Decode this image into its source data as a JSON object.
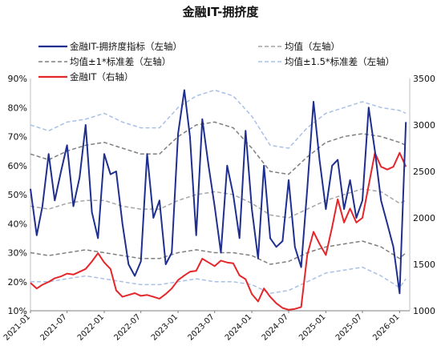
{
  "chart_data": {
    "type": "line",
    "title": "金融IT-拥挤度",
    "x_tick_labels": [
      "2021-01",
      "2021-07",
      "2022-01",
      "2022-07",
      "2023-01",
      "2023-07",
      "2024-01",
      "2024-07",
      "2025-01",
      "2025-07",
      "2026-01"
    ],
    "x_range": [
      "2021-01-01",
      "2026-02-20"
    ],
    "y_left": {
      "range": [
        10,
        90
      ],
      "ticks": [
        "10%",
        "20%",
        "30%",
        "40%",
        "50%",
        "60%",
        "70%",
        "80%",
        "90%"
      ],
      "unit": "%"
    },
    "y_right": {
      "range": [
        1000,
        3500
      ],
      "ticks": [
        "1000",
        "1500",
        "2000",
        "2500",
        "3000",
        "3500"
      ]
    },
    "legend": {
      "position": "top",
      "entries": [
        {
          "label": "金融IT-拥挤度指标（左轴）",
          "color": "#1f2f8f",
          "style": "solid"
        },
        {
          "label": "均值（左轴）",
          "color": "#a6a6a6",
          "style": "dashed"
        },
        {
          "label": "均值±1*标准差（左轴）",
          "color": "#7f7f7f",
          "style": "dashed"
        },
        {
          "label": "均值±1.5*标准差（左轴）",
          "color": "#a9c0e6",
          "style": "dashed"
        },
        {
          "label": "金融IT（右轴）",
          "color": "#e5262a",
          "style": "solid"
        }
      ]
    },
    "series": [
      {
        "name": "金融IT-拥挤度指标（左轴）",
        "axis": "left",
        "color": "#1f2f8f",
        "x": [
          "2021-01",
          "2021-02",
          "2021-03",
          "2021-04",
          "2021-05",
          "2021-06",
          "2021-07",
          "2021-08",
          "2021-09",
          "2021-10",
          "2021-11",
          "2021-12",
          "2022-01",
          "2022-02",
          "2022-03",
          "2022-04",
          "2022-05",
          "2022-06",
          "2022-07",
          "2022-08",
          "2022-09",
          "2022-10",
          "2022-11",
          "2022-12",
          "2023-01",
          "2023-02",
          "2023-03",
          "2023-04",
          "2023-05",
          "2023-06",
          "2023-07",
          "2023-08",
          "2023-09",
          "2023-10",
          "2023-11",
          "2023-12",
          "2024-01",
          "2024-02",
          "2024-03",
          "2024-04",
          "2024-05",
          "2024-06",
          "2024-07",
          "2024-08",
          "2024-09",
          "2024-10",
          "2024-11",
          "2024-12",
          "2025-01",
          "2025-02",
          "2025-03",
          "2025-04",
          "2025-05",
          "2025-06",
          "2025-07",
          "2025-08",
          "2025-09",
          "2025-10",
          "2025-11",
          "2025-12",
          "2026-01",
          "2026-02"
        ],
        "y": [
          52,
          36,
          46,
          64,
          48,
          58,
          67,
          46,
          56,
          74,
          44,
          35,
          64,
          57,
          58,
          40,
          26,
          22,
          27,
          64,
          42,
          48,
          26,
          30,
          71,
          86,
          70,
          36,
          76,
          60,
          46,
          30,
          60,
          50,
          35,
          72,
          45,
          28,
          60,
          35,
          32,
          34,
          55,
          32,
          25,
          52,
          82,
          62,
          45,
          60,
          62,
          45,
          55,
          42,
          48,
          80,
          65,
          48,
          40,
          32,
          16,
          75
        ]
      },
      {
        "name": "金融IT（右轴）",
        "axis": "right",
        "color": "#e5262a",
        "x": [
          "2021-01",
          "2021-02",
          "2021-03",
          "2021-04",
          "2021-05",
          "2021-06",
          "2021-07",
          "2021-08",
          "2021-09",
          "2021-10",
          "2021-11",
          "2021-12",
          "2022-01",
          "2022-02",
          "2022-03",
          "2022-04",
          "2022-05",
          "2022-06",
          "2022-07",
          "2022-08",
          "2022-09",
          "2022-10",
          "2022-11",
          "2022-12",
          "2023-01",
          "2023-02",
          "2023-03",
          "2023-04",
          "2023-05",
          "2023-06",
          "2023-07",
          "2023-08",
          "2023-09",
          "2023-10",
          "2023-11",
          "2023-12",
          "2024-01",
          "2024-02",
          "2024-03",
          "2024-04",
          "2024-05",
          "2024-06",
          "2024-07",
          "2024-08",
          "2024-09",
          "2024-10",
          "2024-11",
          "2024-12",
          "2025-01",
          "2025-02",
          "2025-03",
          "2025-04",
          "2025-05",
          "2025-06",
          "2025-07",
          "2025-08",
          "2025-09",
          "2025-10",
          "2025-11",
          "2025-12",
          "2026-01",
          "2026-02"
        ],
        "y": [
          1300,
          1240,
          1280,
          1310,
          1350,
          1370,
          1400,
          1390,
          1420,
          1450,
          1530,
          1620,
          1520,
          1450,
          1220,
          1150,
          1170,
          1190,
          1160,
          1170,
          1150,
          1130,
          1180,
          1240,
          1330,
          1380,
          1420,
          1430,
          1560,
          1520,
          1480,
          1540,
          1520,
          1510,
          1380,
          1340,
          1180,
          1100,
          1240,
          1150,
          1080,
          1030,
          1010,
          1020,
          1040,
          1600,
          1850,
          1720,
          1600,
          1900,
          2200,
          1950,
          2100,
          1950,
          2000,
          2350,
          2700,
          2550,
          2520,
          2550,
          2700,
          2550
        ]
      },
      {
        "name": "均值（左轴）",
        "axis": "left",
        "color": "#a6a6a6",
        "style": "dashed",
        "x": [
          "2021-01",
          "2021-04",
          "2021-07",
          "2021-10",
          "2022-01",
          "2022-04",
          "2022-07",
          "2022-10",
          "2023-01",
          "2023-04",
          "2023-07",
          "2023-10",
          "2024-01",
          "2024-04",
          "2024-07",
          "2024-10",
          "2025-01",
          "2025-04",
          "2025-07",
          "2025-10",
          "2026-01",
          "2026-02"
        ],
        "y": [
          46,
          45,
          47,
          48,
          48,
          46,
          45,
          45,
          48,
          50,
          51,
          50,
          47,
          43,
          42,
          45,
          48,
          50,
          52,
          51,
          47,
          48
        ]
      },
      {
        "name": "均值±1*标准差（左轴）",
        "axis": "left",
        "color": "#7f7f7f",
        "style": "dashed",
        "x": [
          "2021-01",
          "2021-04",
          "2021-07",
          "2021-10",
          "2022-01",
          "2022-04",
          "2022-07",
          "2022-10",
          "2023-01",
          "2023-04",
          "2023-07",
          "2023-10",
          "2024-01",
          "2024-04",
          "2024-07",
          "2024-10",
          "2025-01",
          "2025-04",
          "2025-07",
          "2025-10",
          "2026-01",
          "2026-02"
        ],
        "y": [
          64,
          62,
          65,
          67,
          68,
          66,
          64,
          64,
          70,
          74,
          75,
          73,
          66,
          58,
          57,
          63,
          68,
          70,
          71,
          70,
          68,
          67
        ],
        "y_lower": [
          30,
          29,
          30,
          31,
          30,
          29,
          28,
          28,
          30,
          31,
          30,
          30,
          29,
          26,
          27,
          30,
          32,
          33,
          34,
          32,
          28,
          30
        ]
      },
      {
        "name": "均值±1.5*标准差（左轴）",
        "axis": "left",
        "color": "#a9c0e6",
        "style": "dashed",
        "x": [
          "2021-01",
          "2021-04",
          "2021-07",
          "2021-10",
          "2022-01",
          "2022-04",
          "2022-07",
          "2022-10",
          "2023-01",
          "2023-04",
          "2023-07",
          "2023-10",
          "2024-01",
          "2024-04",
          "2024-07",
          "2024-10",
          "2025-01",
          "2025-04",
          "2025-07",
          "2025-10",
          "2026-01",
          "2026-02"
        ],
        "y": [
          74,
          72,
          75,
          76,
          78,
          75,
          73,
          73,
          80,
          84,
          86,
          84,
          77,
          67,
          66,
          73,
          78,
          80,
          82,
          80,
          79,
          78
        ],
        "y_lower": [
          20,
          20,
          21,
          22,
          21,
          20,
          19,
          19,
          20,
          21,
          20,
          20,
          19,
          16,
          17,
          20,
          23,
          24,
          25,
          22,
          18,
          21
        ]
      }
    ]
  }
}
